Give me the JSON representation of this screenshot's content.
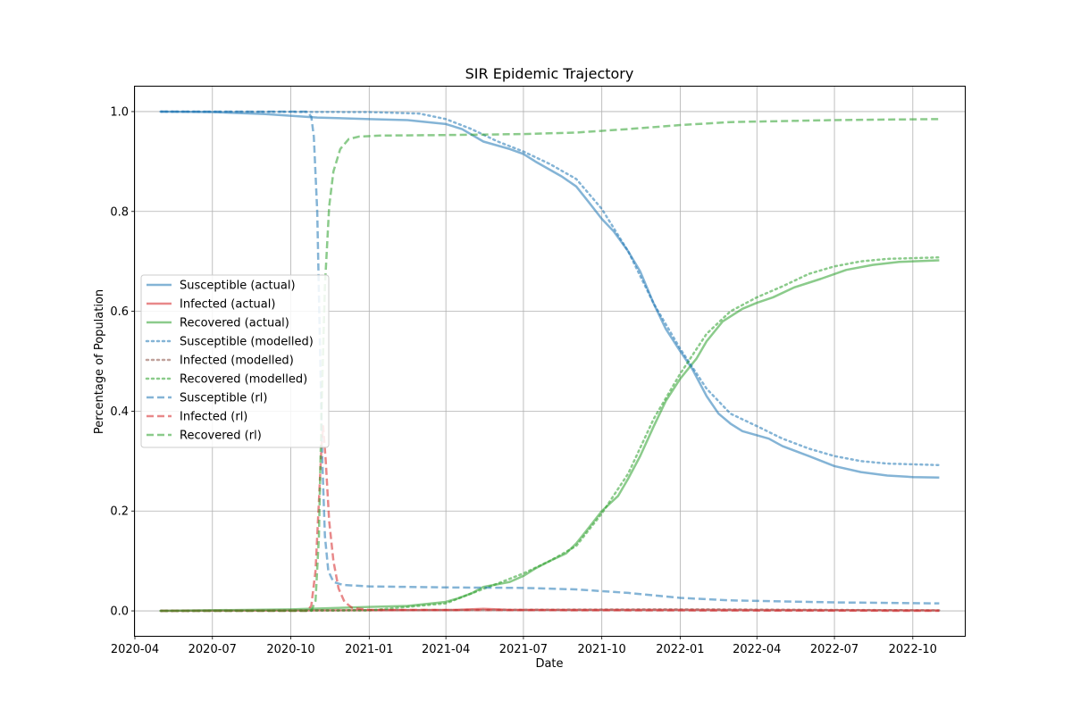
{
  "chart_data": {
    "type": "line",
    "title": "SIR Epidemic Trajectory",
    "xlabel": "Date",
    "ylabel": "Percentage of Population",
    "x_axis": {
      "type": "date",
      "range": [
        "2020-04-01",
        "2022-12-01"
      ],
      "ticks": [
        {
          "date": "2020-04-01",
          "label": "2020-04"
        },
        {
          "date": "2020-07-01",
          "label": "2020-07"
        },
        {
          "date": "2020-10-01",
          "label": "2020-10"
        },
        {
          "date": "2021-01-01",
          "label": "2021-01"
        },
        {
          "date": "2021-04-01",
          "label": "2021-04"
        },
        {
          "date": "2021-07-01",
          "label": "2021-07"
        },
        {
          "date": "2021-10-01",
          "label": "2021-10"
        },
        {
          "date": "2022-01-01",
          "label": "2022-01"
        },
        {
          "date": "2022-04-01",
          "label": "2022-04"
        },
        {
          "date": "2022-07-01",
          "label": "2022-07"
        },
        {
          "date": "2022-10-01",
          "label": "2022-10"
        }
      ]
    },
    "y_axis": {
      "range": [
        -0.05,
        1.05
      ],
      "ticks": [
        {
          "value": 0.0,
          "label": "0.0"
        },
        {
          "value": 0.2,
          "label": "0.2"
        },
        {
          "value": 0.4,
          "label": "0.4"
        },
        {
          "value": 0.6,
          "label": "0.6"
        },
        {
          "value": 0.8,
          "label": "0.8"
        },
        {
          "value": 1.0,
          "label": "1.0"
        }
      ]
    },
    "grid": true,
    "legend_position": "center-left",
    "series": [
      {
        "name": "Susceptible (actual)",
        "color": "#1f77b4",
        "dash": "solid",
        "points": [
          [
            "2020-05-01",
            1.0
          ],
          [
            "2020-07-01",
            0.999
          ],
          [
            "2020-09-01",
            0.995
          ],
          [
            "2020-11-01",
            0.988
          ],
          [
            "2021-01-01",
            0.985
          ],
          [
            "2021-02-15",
            0.983
          ],
          [
            "2021-04-01",
            0.975
          ],
          [
            "2021-04-20",
            0.965
          ],
          [
            "2021-05-15",
            0.94
          ],
          [
            "2021-06-15",
            0.925
          ],
          [
            "2021-07-01",
            0.915
          ],
          [
            "2021-07-15",
            0.9
          ],
          [
            "2021-08-15",
            0.87
          ],
          [
            "2021-09-01",
            0.85
          ],
          [
            "2021-09-15",
            0.82
          ],
          [
            "2021-10-01",
            0.785
          ],
          [
            "2021-10-15",
            0.76
          ],
          [
            "2021-11-01",
            0.72
          ],
          [
            "2021-11-15",
            0.68
          ],
          [
            "2021-12-01",
            0.615
          ],
          [
            "2021-12-15",
            0.565
          ],
          [
            "2022-01-01",
            0.52
          ],
          [
            "2022-01-15",
            0.485
          ],
          [
            "2022-02-01",
            0.43
          ],
          [
            "2022-02-15",
            0.395
          ],
          [
            "2022-03-01",
            0.375
          ],
          [
            "2022-03-15",
            0.36
          ],
          [
            "2022-04-15",
            0.345
          ],
          [
            "2022-05-01",
            0.33
          ],
          [
            "2022-06-01",
            0.31
          ],
          [
            "2022-07-01",
            0.29
          ],
          [
            "2022-08-01",
            0.278
          ],
          [
            "2022-09-01",
            0.271
          ],
          [
            "2022-10-01",
            0.268
          ],
          [
            "2022-11-01",
            0.267
          ]
        ]
      },
      {
        "name": "Infected (actual)",
        "color": "#d62728",
        "dash": "solid",
        "points": [
          [
            "2020-05-01",
            0.0
          ],
          [
            "2021-04-15",
            0.002
          ],
          [
            "2021-05-15",
            0.004
          ],
          [
            "2021-06-15",
            0.002
          ],
          [
            "2022-01-01",
            0.002
          ],
          [
            "2022-11-01",
            0.001
          ]
        ]
      },
      {
        "name": "Recovered (actual)",
        "color": "#2ca02c",
        "dash": "solid",
        "points": [
          [
            "2020-05-01",
            0.0
          ],
          [
            "2020-10-01",
            0.003
          ],
          [
            "2021-01-01",
            0.008
          ],
          [
            "2021-02-15",
            0.01
          ],
          [
            "2021-04-01",
            0.018
          ],
          [
            "2021-04-15",
            0.025
          ],
          [
            "2021-05-01",
            0.035
          ],
          [
            "2021-05-15",
            0.048
          ],
          [
            "2021-06-15",
            0.058
          ],
          [
            "2021-07-01",
            0.07
          ],
          [
            "2021-07-15",
            0.085
          ],
          [
            "2021-08-01",
            0.1
          ],
          [
            "2021-08-20",
            0.115
          ],
          [
            "2021-09-01",
            0.135
          ],
          [
            "2021-09-15",
            0.165
          ],
          [
            "2021-10-01",
            0.2
          ],
          [
            "2021-10-20",
            0.23
          ],
          [
            "2021-11-01",
            0.265
          ],
          [
            "2021-11-15",
            0.31
          ],
          [
            "2021-12-01",
            0.37
          ],
          [
            "2021-12-15",
            0.42
          ],
          [
            "2022-01-01",
            0.465
          ],
          [
            "2022-01-20",
            0.505
          ],
          [
            "2022-02-01",
            0.54
          ],
          [
            "2022-02-20",
            0.58
          ],
          [
            "2022-03-15",
            0.605
          ],
          [
            "2022-04-01",
            0.617
          ],
          [
            "2022-04-20",
            0.628
          ],
          [
            "2022-05-15",
            0.648
          ],
          [
            "2022-06-15",
            0.665
          ],
          [
            "2022-07-15",
            0.683
          ],
          [
            "2022-08-15",
            0.693
          ],
          [
            "2022-09-15",
            0.699
          ],
          [
            "2022-11-01",
            0.702
          ]
        ]
      },
      {
        "name": "Susceptible (modelled)",
        "color": "#1f77b4",
        "dash": "dotted",
        "points": [
          [
            "2020-05-01",
            1.0
          ],
          [
            "2021-01-01",
            0.999
          ],
          [
            "2021-03-01",
            0.996
          ],
          [
            "2021-04-01",
            0.985
          ],
          [
            "2021-05-01",
            0.965
          ],
          [
            "2021-06-01",
            0.94
          ],
          [
            "2021-07-01",
            0.92
          ],
          [
            "2021-08-01",
            0.895
          ],
          [
            "2021-09-01",
            0.865
          ],
          [
            "2021-10-01",
            0.805
          ],
          [
            "2021-11-01",
            0.72
          ],
          [
            "2021-12-01",
            0.615
          ],
          [
            "2022-01-01",
            0.525
          ],
          [
            "2022-02-01",
            0.445
          ],
          [
            "2022-03-01",
            0.395
          ],
          [
            "2022-04-01",
            0.37
          ],
          [
            "2022-05-01",
            0.345
          ],
          [
            "2022-06-01",
            0.325
          ],
          [
            "2022-07-01",
            0.31
          ],
          [
            "2022-08-01",
            0.3
          ],
          [
            "2022-09-01",
            0.295
          ],
          [
            "2022-11-01",
            0.292
          ]
        ]
      },
      {
        "name": "Infected (modelled)",
        "color": "#8c564b",
        "dash": "dotted",
        "points": [
          [
            "2020-05-01",
            0.0
          ],
          [
            "2021-06-01",
            0.002
          ],
          [
            "2021-12-01",
            0.003
          ],
          [
            "2022-02-01",
            0.003
          ],
          [
            "2022-11-01",
            0.001
          ]
        ]
      },
      {
        "name": "Recovered (modelled)",
        "color": "#2ca02c",
        "dash": "dotted",
        "points": [
          [
            "2020-05-01",
            0.0
          ],
          [
            "2021-01-01",
            0.001
          ],
          [
            "2021-04-01",
            0.015
          ],
          [
            "2021-05-01",
            0.035
          ],
          [
            "2021-06-01",
            0.055
          ],
          [
            "2021-07-01",
            0.075
          ],
          [
            "2021-08-01",
            0.1
          ],
          [
            "2021-09-01",
            0.13
          ],
          [
            "2021-10-01",
            0.195
          ],
          [
            "2021-11-01",
            0.275
          ],
          [
            "2021-12-01",
            0.385
          ],
          [
            "2022-01-01",
            0.475
          ],
          [
            "2022-02-01",
            0.555
          ],
          [
            "2022-03-01",
            0.6
          ],
          [
            "2022-04-01",
            0.628
          ],
          [
            "2022-05-01",
            0.65
          ],
          [
            "2022-06-01",
            0.675
          ],
          [
            "2022-07-01",
            0.69
          ],
          [
            "2022-08-01",
            0.7
          ],
          [
            "2022-09-01",
            0.705
          ],
          [
            "2022-11-01",
            0.708
          ]
        ]
      },
      {
        "name": "Susceptible (rl)",
        "color": "#1f77b4",
        "dash": "dashed",
        "points": [
          [
            "2020-05-01",
            1.0
          ],
          [
            "2020-10-20",
            1.0
          ],
          [
            "2020-10-25",
            0.99
          ],
          [
            "2020-10-28",
            0.95
          ],
          [
            "2020-11-01",
            0.8
          ],
          [
            "2020-11-04",
            0.55
          ],
          [
            "2020-11-07",
            0.3
          ],
          [
            "2020-11-10",
            0.15
          ],
          [
            "2020-11-14",
            0.08
          ],
          [
            "2020-11-20",
            0.058
          ],
          [
            "2020-12-01",
            0.052
          ],
          [
            "2021-01-01",
            0.049
          ],
          [
            "2021-04-01",
            0.047
          ],
          [
            "2021-07-01",
            0.046
          ],
          [
            "2021-09-01",
            0.043
          ],
          [
            "2021-11-01",
            0.036
          ],
          [
            "2022-01-01",
            0.026
          ],
          [
            "2022-03-01",
            0.021
          ],
          [
            "2022-07-01",
            0.017
          ],
          [
            "2022-11-01",
            0.015
          ]
        ]
      },
      {
        "name": "Infected (rl)",
        "color": "#d62728",
        "dash": "dashed",
        "points": [
          [
            "2020-05-01",
            0.0
          ],
          [
            "2020-10-20",
            0.0
          ],
          [
            "2020-10-25",
            0.01
          ],
          [
            "2020-10-30",
            0.08
          ],
          [
            "2020-11-03",
            0.22
          ],
          [
            "2020-11-06",
            0.33
          ],
          [
            "2020-11-08",
            0.37
          ],
          [
            "2020-11-11",
            0.3
          ],
          [
            "2020-11-15",
            0.18
          ],
          [
            "2020-11-20",
            0.1
          ],
          [
            "2020-11-26",
            0.045
          ],
          [
            "2020-12-03",
            0.018
          ],
          [
            "2020-12-12",
            0.006
          ],
          [
            "2021-01-01",
            0.002
          ],
          [
            "2022-11-01",
            0.0
          ]
        ]
      },
      {
        "name": "Recovered (rl)",
        "color": "#2ca02c",
        "dash": "dashed",
        "points": [
          [
            "2020-05-01",
            0.0
          ],
          [
            "2020-10-25",
            0.0
          ],
          [
            "2020-10-30",
            0.02
          ],
          [
            "2020-11-03",
            0.15
          ],
          [
            "2020-11-06",
            0.4
          ],
          [
            "2020-11-10",
            0.65
          ],
          [
            "2020-11-15",
            0.81
          ],
          [
            "2020-11-20",
            0.88
          ],
          [
            "2020-11-28",
            0.925
          ],
          [
            "2020-12-08",
            0.945
          ],
          [
            "2020-12-20",
            0.95
          ],
          [
            "2021-01-15",
            0.952
          ],
          [
            "2021-04-01",
            0.953
          ],
          [
            "2021-07-01",
            0.955
          ],
          [
            "2021-09-01",
            0.958
          ],
          [
            "2021-11-01",
            0.965
          ],
          [
            "2022-01-01",
            0.973
          ],
          [
            "2022-03-01",
            0.979
          ],
          [
            "2022-07-01",
            0.983
          ],
          [
            "2022-11-01",
            0.985
          ]
        ]
      }
    ]
  }
}
